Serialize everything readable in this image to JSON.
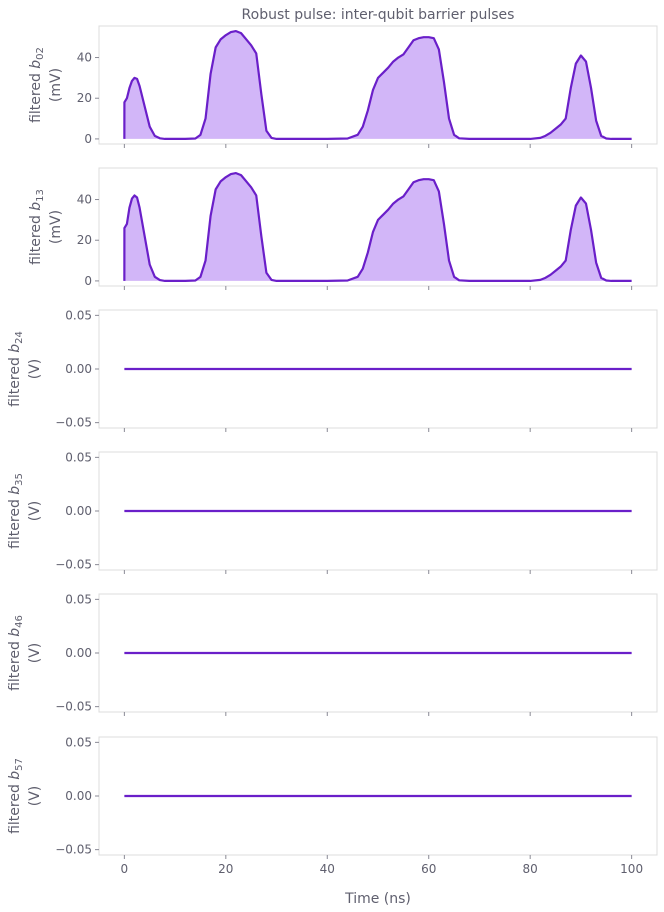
{
  "title": "Robust pulse: inter-qubit barrier pulses",
  "xlabel": "Time (ns)",
  "colors": {
    "line": "#6a1fc9",
    "fill": "#d2b6f8",
    "axes": "#dcdcdc",
    "text": "#5f5f6e"
  },
  "chart_data": [
    {
      "type": "area",
      "ylabel_name": "filtered b",
      "ylabel_sub": "02",
      "ylabel_unit": "(mV)",
      "xlim": [
        -5,
        105
      ],
      "ylim": [
        -2.5,
        55.5
      ],
      "xticks": [
        0,
        20,
        40,
        60,
        80,
        100
      ],
      "xtick_labels": [],
      "yticks": [
        0,
        20,
        40
      ],
      "ytick_labels": [
        "0",
        "20",
        "40"
      ],
      "x": [
        0,
        0.01,
        0.5,
        1,
        1.5,
        2,
        2.5,
        3,
        4,
        5,
        6,
        7,
        8,
        10,
        12,
        14,
        15,
        16,
        17,
        18,
        19,
        20,
        21,
        22,
        23,
        24,
        25,
        26,
        27,
        28,
        29,
        30,
        32,
        34,
        36,
        38,
        40,
        44,
        46,
        47,
        48,
        49,
        50,
        51,
        52,
        53,
        54,
        55,
        56,
        57,
        58,
        59,
        60,
        61,
        62,
        63,
        64,
        65,
        66,
        68,
        70,
        74,
        78,
        80,
        82,
        83,
        84,
        85,
        86,
        87,
        88,
        89,
        90,
        91,
        92,
        93,
        94,
        95,
        96,
        98,
        100
      ],
      "series": [
        {
          "values": [
            0,
            18,
            20,
            25,
            28.5,
            30,
            29.5,
            26,
            16,
            6,
            1.5,
            0.3,
            0,
            0,
            0,
            0.2,
            2,
            10,
            32,
            45,
            49,
            51,
            52.5,
            53,
            52,
            49,
            46,
            42,
            22,
            4,
            0.5,
            0,
            0,
            0,
            0,
            0,
            0,
            0.2,
            2,
            6,
            14,
            24,
            30,
            32.5,
            35,
            38,
            40,
            41.5,
            45,
            48.5,
            49.5,
            50,
            50,
            49.5,
            44,
            28,
            10,
            2,
            0.3,
            0,
            0,
            0,
            0,
            0,
            0.5,
            1.5,
            3,
            5,
            7,
            10,
            25,
            37,
            41,
            38,
            25,
            9,
            1.5,
            0.2,
            0,
            0,
            0
          ]
        }
      ]
    },
    {
      "type": "area",
      "ylabel_name": "filtered b",
      "ylabel_sub": "13",
      "ylabel_unit": "(mV)",
      "xlim": [
        -5,
        105
      ],
      "ylim": [
        -2.5,
        55.5
      ],
      "xticks": [
        0,
        20,
        40,
        60,
        80,
        100
      ],
      "xtick_labels": [],
      "yticks": [
        0,
        20,
        40
      ],
      "ytick_labels": [
        "0",
        "20",
        "40"
      ],
      "x": [
        0,
        0.01,
        0.5,
        1,
        1.5,
        2,
        2.5,
        3,
        4,
        5,
        6,
        7,
        8,
        10,
        12,
        14,
        15,
        16,
        17,
        18,
        19,
        20,
        21,
        22,
        23,
        24,
        25,
        26,
        27,
        28,
        29,
        30,
        32,
        34,
        36,
        38,
        40,
        44,
        46,
        47,
        48,
        49,
        50,
        51,
        52,
        53,
        54,
        55,
        56,
        57,
        58,
        59,
        60,
        61,
        62,
        63,
        64,
        65,
        66,
        68,
        70,
        74,
        78,
        80,
        82,
        83,
        84,
        85,
        86,
        87,
        88,
        89,
        90,
        91,
        92,
        93,
        94,
        95,
        96,
        98,
        100
      ],
      "series": [
        {
          "values": [
            0,
            26,
            28,
            36,
            40.5,
            42,
            41,
            36,
            22,
            8,
            2,
            0.4,
            0,
            0,
            0,
            0.2,
            2,
            10,
            32,
            45,
            49,
            51,
            52.5,
            53,
            52,
            49,
            46,
            42,
            22,
            4,
            0.5,
            0,
            0,
            0,
            0,
            0,
            0,
            0.2,
            2,
            6,
            14,
            24,
            30,
            32.5,
            35,
            38,
            40,
            41.5,
            45,
            48.5,
            49.5,
            50,
            50,
            49.5,
            44,
            28,
            10,
            2,
            0.3,
            0,
            0,
            0,
            0,
            0,
            0.5,
            1.5,
            3,
            5,
            7,
            10,
            25,
            37,
            41,
            38,
            25,
            9,
            1.5,
            0.2,
            0,
            0,
            0
          ]
        }
      ]
    },
    {
      "type": "line",
      "ylabel_name": "filtered b",
      "ylabel_sub": "24",
      "ylabel_unit": "(V)",
      "xlim": [
        -5,
        105
      ],
      "ylim": [
        -0.055,
        0.055
      ],
      "xticks": [
        0,
        20,
        40,
        60,
        80,
        100
      ],
      "xtick_labels": [],
      "yticks": [
        0.05,
        0,
        -0.05
      ],
      "ytick_labels": [
        "0.05",
        "0.00",
        "−0.05"
      ],
      "x": [
        0,
        100
      ],
      "series": [
        {
          "values": [
            0,
            0
          ]
        }
      ]
    },
    {
      "type": "line",
      "ylabel_name": "filtered b",
      "ylabel_sub": "35",
      "ylabel_unit": "(V)",
      "xlim": [
        -5,
        105
      ],
      "ylim": [
        -0.055,
        0.055
      ],
      "xticks": [
        0,
        20,
        40,
        60,
        80,
        100
      ],
      "xtick_labels": [],
      "yticks": [
        0.05,
        0,
        -0.05
      ],
      "ytick_labels": [
        "0.05",
        "0.00",
        "−0.05"
      ],
      "x": [
        0,
        100
      ],
      "series": [
        {
          "values": [
            0,
            0
          ]
        }
      ]
    },
    {
      "type": "line",
      "ylabel_name": "filtered b",
      "ylabel_sub": "46",
      "ylabel_unit": "(V)",
      "xlim": [
        -5,
        105
      ],
      "ylim": [
        -0.055,
        0.055
      ],
      "xticks": [
        0,
        20,
        40,
        60,
        80,
        100
      ],
      "xtick_labels": [],
      "yticks": [
        0.05,
        0,
        -0.05
      ],
      "ytick_labels": [
        "0.05",
        "0.00",
        "−0.05"
      ],
      "x": [
        0,
        100
      ],
      "series": [
        {
          "values": [
            0,
            0
          ]
        }
      ]
    },
    {
      "type": "line",
      "ylabel_name": "filtered b",
      "ylabel_sub": "57",
      "ylabel_unit": "(V)",
      "xlim": [
        -5,
        105
      ],
      "ylim": [
        -0.055,
        0.055
      ],
      "xticks": [
        0,
        20,
        40,
        60,
        80,
        100
      ],
      "xtick_labels": [
        "0",
        "20",
        "40",
        "60",
        "80",
        "100"
      ],
      "yticks": [
        0.05,
        0,
        -0.05
      ],
      "ytick_labels": [
        "0.05",
        "0.00",
        "−0.05"
      ],
      "x": [
        0,
        100
      ],
      "series": [
        {
          "values": [
            0,
            0
          ]
        }
      ]
    }
  ]
}
